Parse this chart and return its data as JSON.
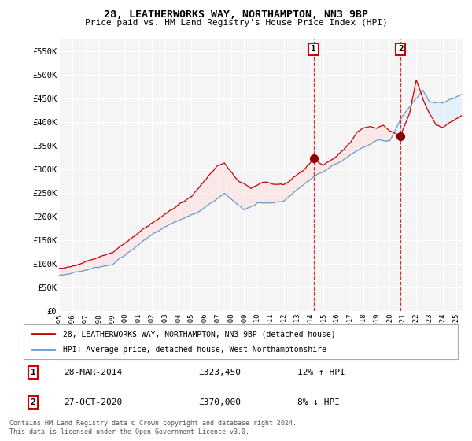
{
  "title": "28, LEATHERWORKS WAY, NORTHAMPTON, NN3 9BP",
  "subtitle": "Price paid vs. HM Land Registry's House Price Index (HPI)",
  "xlim_start": 1995.0,
  "xlim_end": 2025.5,
  "ylim_min": 0,
  "ylim_max": 575000,
  "yticks": [
    0,
    50000,
    100000,
    150000,
    200000,
    250000,
    300000,
    350000,
    400000,
    450000,
    500000,
    550000
  ],
  "ytick_labels": [
    "£0",
    "£50K",
    "£100K",
    "£150K",
    "£200K",
    "£250K",
    "£300K",
    "£350K",
    "£400K",
    "£450K",
    "£500K",
    "£550K"
  ],
  "xtick_years": [
    1995,
    1996,
    1997,
    1998,
    1999,
    2000,
    2001,
    2002,
    2003,
    2004,
    2005,
    2006,
    2007,
    2008,
    2009,
    2010,
    2011,
    2012,
    2013,
    2014,
    2015,
    2016,
    2017,
    2018,
    2019,
    2020,
    2021,
    2022,
    2023,
    2024,
    2025
  ],
  "red_line_color": "#cc0000",
  "blue_line_color": "#6699cc",
  "blue_fill_color": "#ddeeff",
  "sale1_x": 2014.24,
  "sale1_y": 323450,
  "sale2_x": 2020.82,
  "sale2_y": 370000,
  "legend_line1": "28, LEATHERWORKS WAY, NORTHAMPTON, NN3 9BP (detached house)",
  "legend_line2": "HPI: Average price, detached house, West Northamptonshire",
  "sale1_date": "28-MAR-2014",
  "sale1_price": "£323,450",
  "sale1_hpi": "12% ↑ HPI",
  "sale2_date": "27-OCT-2020",
  "sale2_price": "£370,000",
  "sale2_hpi": "8% ↓ HPI",
  "footnote": "Contains HM Land Registry data © Crown copyright and database right 2024.\nThis data is licensed under the Open Government Licence v3.0.",
  "background_color": "#ffffff",
  "plot_bg_color": "#f5f5f5",
  "grid_color": "#ffffff"
}
